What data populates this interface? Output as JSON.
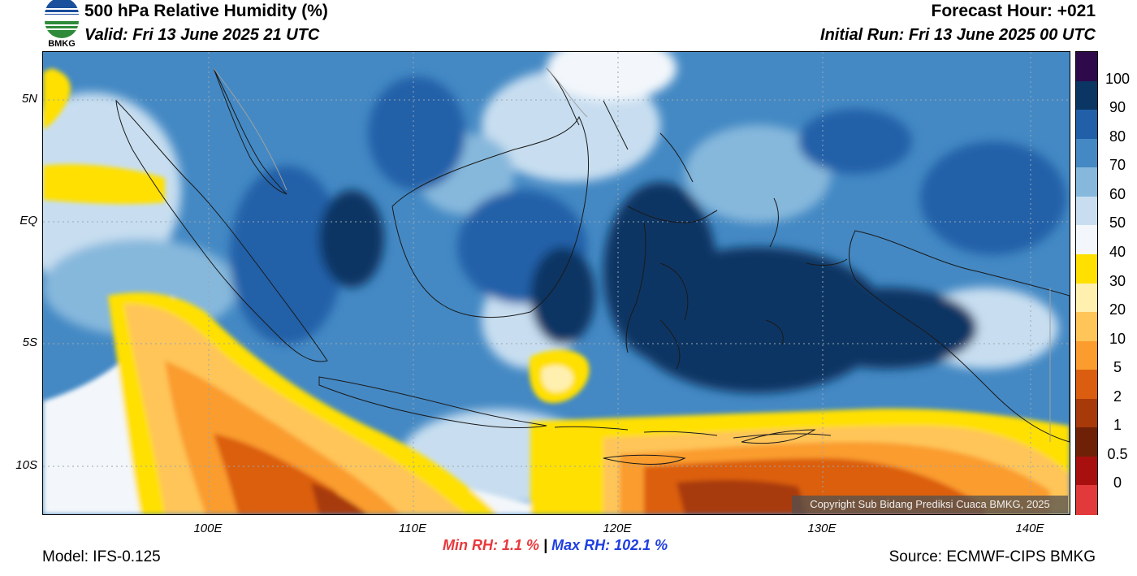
{
  "header": {
    "title": "500 hPa Relative Humidity (%)",
    "valid": "Valid: Fri 13 June 2025 21 UTC",
    "forecast_hour": "Forecast Hour: +021",
    "initial_run": "Initial Run: Fri 13 June 2025 00 UTC",
    "logo_text": "BMKG"
  },
  "axes": {
    "lat_labels": [
      "5N",
      "EQ",
      "5S",
      "10S"
    ],
    "lon_labels": [
      "100E",
      "110E",
      "120E",
      "130E",
      "140E"
    ]
  },
  "colorbar": {
    "labels": [
      "100",
      "90",
      "80",
      "70",
      "60",
      "50",
      "40",
      "30",
      "20",
      "10",
      "5",
      "2",
      "1",
      "0.5",
      "0"
    ],
    "colors": [
      "#2e0a4a",
      "#0b3563",
      "#2160a8",
      "#4489c4",
      "#86b8dc",
      "#c8def0",
      "#f3f7fb",
      "#ffe000",
      "#fff0b0",
      "#ffc558",
      "#fa9c2e",
      "#db5e10",
      "#a83a0a",
      "#6e2107",
      "#a81010",
      "#e23a3a"
    ]
  },
  "stats": {
    "min_rh": "Min RH:   1.1 %",
    "separator": "|",
    "max_rh": "Max RH: 102.1 %"
  },
  "footer": {
    "model": "Model: IFS-0.125",
    "source": "Source: ECMWF-CIPS BMKG",
    "copyright": "Copyright Sub Bidang Prediksi Cuaca BMKG, 2025"
  }
}
